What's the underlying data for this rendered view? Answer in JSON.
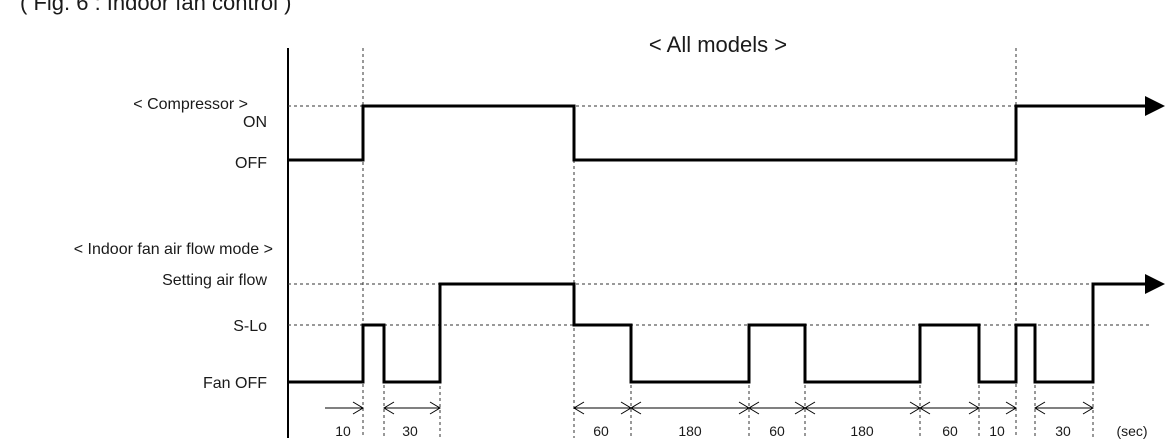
{
  "header": {
    "figure_caption": "( Fig. 6 : Indoor fan control )",
    "title": "< All models >"
  },
  "compressor": {
    "heading": "< Compressor >",
    "on_label": "ON",
    "off_label": "OFF",
    "states": [
      "OFF",
      "ON",
      "OFF",
      "ON"
    ]
  },
  "indoor_fan": {
    "heading": "< Indoor fan air flow mode >",
    "setting_label": "Setting air flow",
    "slo_label": "S-Lo",
    "fanoff_label": "Fan OFF",
    "states": [
      "Fan OFF",
      "S-Lo",
      "Fan OFF",
      "Setting air flow",
      "S-Lo",
      "Fan OFF",
      "S-Lo",
      "Fan OFF",
      "S-Lo",
      "Fan OFF",
      "S-Lo",
      "Fan OFF",
      "Setting air flow"
    ]
  },
  "timing": {
    "unit": "(sec)",
    "intervals": [
      "10",
      "30",
      "60",
      "180",
      "60",
      "180",
      "60",
      "10",
      "30"
    ]
  },
  "colors": {
    "line": "#000000",
    "text": "#1a1a1a",
    "background": "#ffffff"
  }
}
